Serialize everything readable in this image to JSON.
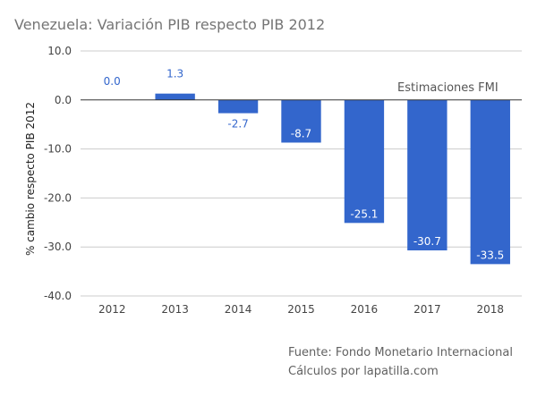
{
  "chart_data": {
    "type": "bar",
    "title": "Venezuela: Variación PIB respecto PIB 2012",
    "xlabel": "",
    "ylabel": "% cambio respecto PIB 2012",
    "categories": [
      "2012",
      "2013",
      "2014",
      "2015",
      "2016",
      "2017",
      "2018"
    ],
    "values": [
      0.0,
      1.3,
      -2.7,
      -8.7,
      -25.1,
      -30.7,
      -33.5
    ],
    "data_labels": [
      "0.0",
      "1.3",
      "-2.7",
      "-8.7",
      "-25.1",
      "-30.7",
      "-33.5"
    ],
    "ylim": [
      -40,
      10
    ],
    "yticks": [
      10,
      0,
      -10,
      -20,
      -30,
      -40
    ],
    "ytick_labels": [
      "10.0",
      "0.0",
      "-10.0",
      "-20.0",
      "-30.0",
      "-40.0"
    ],
    "grid": true,
    "legend": "none",
    "annotation": "Estimaciones FMI",
    "bar_color": "#3366cc",
    "label_color_outside": "#3366cc",
    "label_color_inside": "#ffffff"
  },
  "footer": {
    "source_line": "Fuente: Fondo Monetario Internacional",
    "credit_line": "Cálculos por lapatilla.com"
  }
}
